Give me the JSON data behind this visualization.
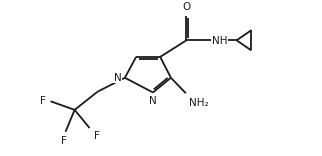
{
  "bg_color": "#ffffff",
  "line_color": "#1a1a1a",
  "line_width": 1.3,
  "font_size": 7.5,
  "figsize": [
    3.22,
    1.56
  ],
  "dpi": 100,
  "xlim": [
    0.8,
    10.5
  ],
  "ylim": [
    2.2,
    7.8
  ]
}
